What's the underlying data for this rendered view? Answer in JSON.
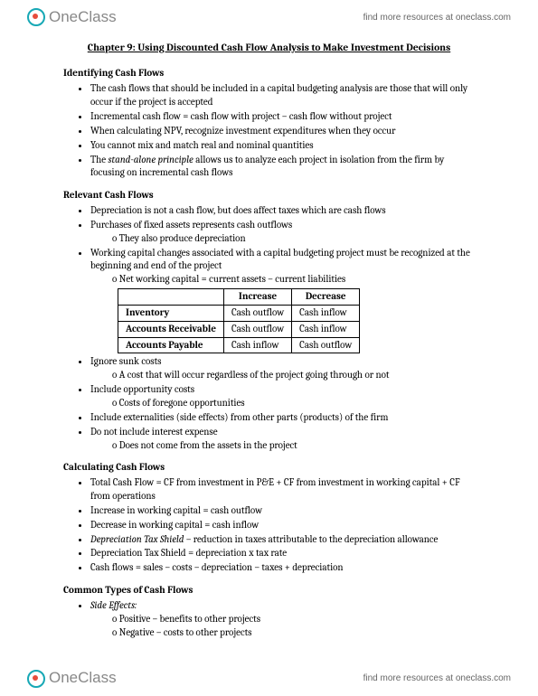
{
  "brand": {
    "name": "OneClass",
    "tagline": "find more resources at oneclass.com"
  },
  "title": "Chapter 9: Using Discounted Cash Flow Analysis to Make Investment Decisions",
  "sections": {
    "s1": {
      "head": "Identifying Cash Flows",
      "b1": "The cash flows that should be included in a capital budgeting analysis are those that will only occur if the project is accepted",
      "b2": "Incremental cash flow = cash flow with project – cash flow without project",
      "b3": "When calculating NPV, recognize investment expenditures when they occur",
      "b4": "You cannot mix and match real and nominal quantities",
      "b5a": "The ",
      "b5i": "stand-alone principle",
      "b5b": " allows us to analyze each project in isolation from the firm by focusing on incremental cash flows"
    },
    "s2": {
      "head": "Relevant Cash Flows",
      "b1": "Depreciation is not a cash flow, but does affect taxes which are cash flows",
      "b2": "Purchases of fixed assets represents cash outflows",
      "b2s1": "They also produce depreciation",
      "b3": "Working capital changes associated with a capital budgeting project must be recognized at the beginning and end of the project",
      "b3s1": "Net working capital = current assets – current liabilities",
      "table": {
        "col1": "Increase",
        "col2": "Decrease",
        "r1h": "Inventory",
        "r1c1": "Cash outflow",
        "r1c2": "Cash inflow",
        "r2h": "Accounts Receivable",
        "r2c1": "Cash outflow",
        "r2c2": "Cash inflow",
        "r3h": "Accounts Payable",
        "r3c1": "Cash inflow",
        "r3c2": "Cash outflow"
      },
      "b4": "Ignore sunk costs",
      "b4s1": "A cost that will occur regardless of the project going through or not",
      "b5": "Include opportunity costs",
      "b5s1": "Costs of foregone opportunities",
      "b6": "Include externalities (side effects) from other parts (products) of the firm",
      "b7": "Do not include interest expense",
      "b7s1": "Does not come from the assets in the project"
    },
    "s3": {
      "head": "Calculating Cash Flows",
      "b1": "Total Cash Flow = CF from investment in P&E + CF from investment in working capital + CF from operations",
      "b2": "Increase in working capital = cash outflow",
      "b3": "Decrease in working capital = cash inflow",
      "b4i": "Depreciation Tax Shield",
      "b4b": " – reduction in taxes attributable to the depreciation allowance",
      "b5": "Depreciation Tax Shield = depreciation x tax rate",
      "b6": "Cash flows = sales – costs – depreciation – taxes + depreciation"
    },
    "s4": {
      "head": "Common Types of Cash Flows",
      "b1i": "Side Effects:",
      "b1s1": "Positive – benefits to other projects",
      "b1s2": "Negative – costs to other projects"
    }
  }
}
